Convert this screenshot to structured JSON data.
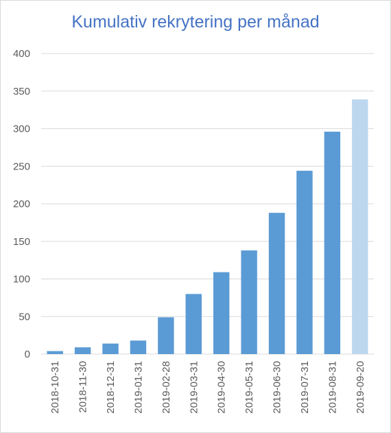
{
  "chart_data": {
    "type": "bar",
    "title": "Kumulativ rekrytering per månad",
    "categories": [
      "2018-10-31",
      "2018-11-30",
      "2018-12-31",
      "2019-01-31",
      "2019-02-28",
      "2019-03-31",
      "2019-04-30",
      "2019-05-31",
      "2019-06-30",
      "2019-07-31",
      "2019-08-31",
      "2019-09-20"
    ],
    "values": [
      4,
      9,
      14,
      18,
      49,
      80,
      109,
      138,
      188,
      244,
      296,
      339
    ],
    "ylim": [
      0,
      400
    ],
    "yticks": [
      0,
      50,
      100,
      150,
      200,
      250,
      300,
      350,
      400
    ],
    "grid": true,
    "colors": {
      "bar": "#5b9bd5",
      "bar_highlight": "#bdd7ee",
      "grid": "#d9d9d9",
      "title": "#4472c4"
    },
    "highlighted_index": 11
  }
}
